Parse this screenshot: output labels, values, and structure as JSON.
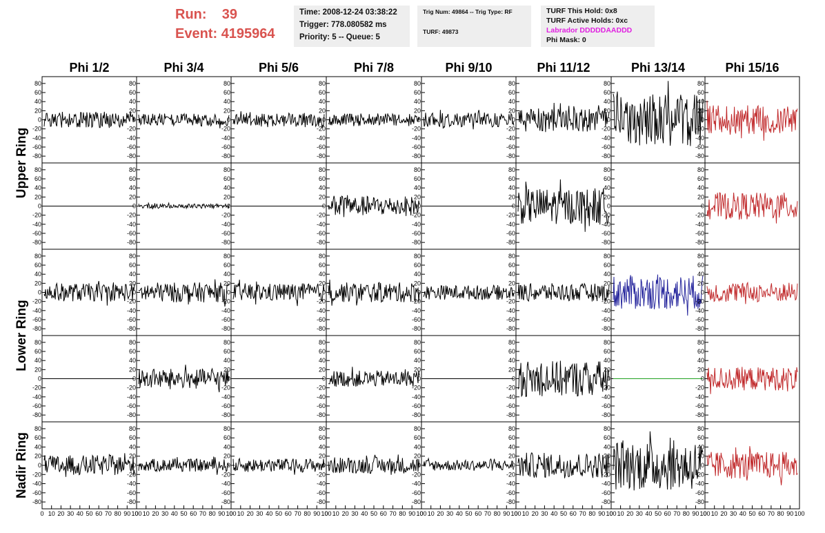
{
  "header": {
    "run_label": "Run:",
    "run_value": "39",
    "event_label": "Event:",
    "event_value": "4195964",
    "box1": [
      "Time: 2008-12-24 03:38:22",
      "Trigger: 778.080582 ms",
      "Priority: 5 -- Queue: 5"
    ],
    "box2": [
      "Trig Num: 49864 -- Trig Type: RF",
      "TURF: 49873"
    ],
    "box3": [
      "TURF This Hold: 0x8",
      "TURF Active Holds: 0xc",
      "Labrador DDDDDAADDD",
      "Phi Mask: 0"
    ]
  },
  "colors": {
    "run_text": "#d9534f",
    "labrador_text": "#e020e0",
    "trace_default": "#000000",
    "trace_red": "#c0282a",
    "trace_blue": "#24249c",
    "trace_green": "#20a020",
    "info_bg": "#eeeeee"
  },
  "chart_data": {
    "type": "line",
    "column_titles": [
      "Phi 1/2",
      "Phi 3/4",
      "Phi 5/6",
      "Phi 7/8",
      "Phi 9/10",
      "Phi 11/12",
      "Phi 13/14",
      "Phi 15/16"
    ],
    "row_titles": [
      "Upper Ring",
      "Lower Ring",
      "Nadir Ring"
    ],
    "ylim": [
      -95,
      95
    ],
    "xlim": [
      0,
      100
    ],
    "yticks": [
      -80,
      -60,
      -40,
      -20,
      0,
      20,
      40,
      60,
      80
    ],
    "xticks": [
      0,
      10,
      20,
      30,
      40,
      50,
      60,
      70,
      80,
      90,
      100
    ],
    "amplitude_grid": [
      [
        18,
        14,
        15,
        14,
        16,
        26,
        58,
        32
      ],
      [
        0,
        5,
        0,
        22,
        0,
        40,
        0,
        30
      ],
      [
        20,
        22,
        20,
        22,
        16,
        20,
        38,
        22
      ],
      [
        0,
        22,
        0,
        18,
        0,
        40,
        0,
        26
      ],
      [
        22,
        14,
        15,
        18,
        12,
        28,
        55,
        30
      ]
    ],
    "color_grid": [
      [
        "default",
        "default",
        "default",
        "default",
        "default",
        "default",
        "default",
        "red"
      ],
      [
        "default",
        "default",
        "default",
        "default",
        "default",
        "default",
        "default",
        "red"
      ],
      [
        "default",
        "default",
        "default",
        "default",
        "default",
        "default",
        "blue",
        "red"
      ],
      [
        "default",
        "default",
        "default",
        "default",
        "default",
        "default",
        "green",
        "red"
      ],
      [
        "default",
        "default",
        "default",
        "default",
        "default",
        "default",
        "default",
        "red"
      ]
    ]
  }
}
